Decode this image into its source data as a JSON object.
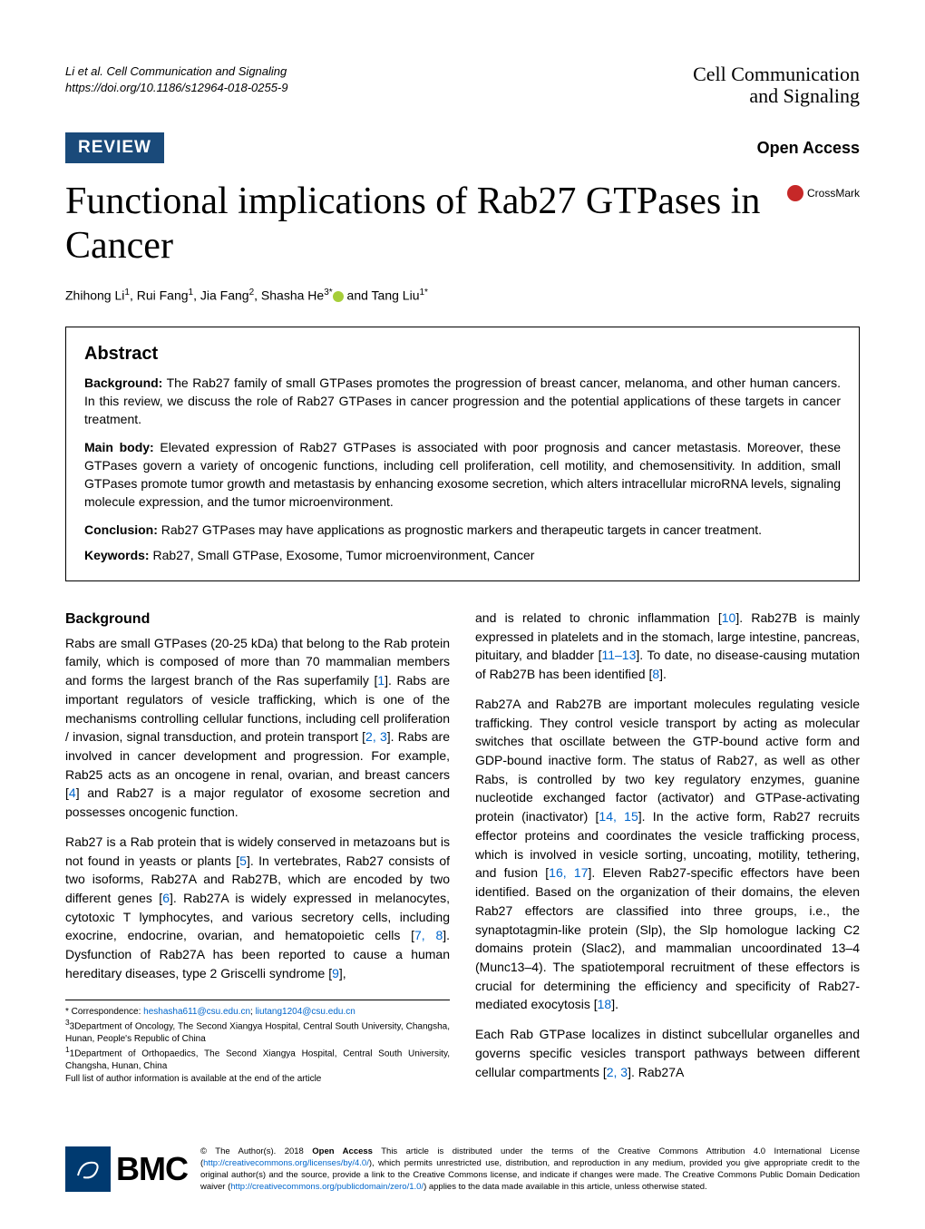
{
  "header": {
    "citation_line1": "Li et al. Cell Communication and Signaling",
    "citation_line2": "https://doi.org/10.1186/s12964-018-0255-9",
    "journal_top": "Cell Communication",
    "journal_bot": "and Signaling"
  },
  "band": {
    "review_tag": "REVIEW",
    "open_access": "Open Access"
  },
  "crossmark": {
    "text": "CrossMark"
  },
  "title": "Functional implications of Rab27 GTPases in Cancer",
  "authors": {
    "html": "Zhihong Li<sup>1</sup>, Rui Fang<sup>1</sup>, Jia Fang<sup>2</sup>, Shasha He<sup>3*</sup><span class='orcid' data-name='orcid-icon' data-interactable='false'></span> and Tang Liu<sup>1*</sup>"
  },
  "abstract": {
    "heading": "Abstract",
    "background_label": "Background:",
    "background_text": " The Rab27 family of small GTPases promotes the progression of breast cancer, melanoma, and other human cancers. In this review, we discuss the role of Rab27 GTPases in cancer progression and the potential applications of these targets in cancer treatment.",
    "mainbody_label": "Main body:",
    "mainbody_text": " Elevated expression of Rab27 GTPases is associated with poor prognosis and cancer metastasis. Moreover, these GTPases govern a variety of oncogenic functions, including cell proliferation, cell motility, and chemosensitivity. In addition, small GTPases promote tumor growth and metastasis by enhancing exosome secretion, which alters intracellular microRNA levels, signaling molecule expression, and the tumor microenvironment.",
    "conclusion_label": "Conclusion:",
    "conclusion_text": " Rab27 GTPases may have applications as prognostic markers and therapeutic targets in cancer treatment.",
    "keywords_label": "Keywords:",
    "keywords_text": " Rab27, Small GTPase, Exosome, Tumor microenvironment, Cancer"
  },
  "body": {
    "left": {
      "heading": "Background",
      "p1": "Rabs are small GTPases (20-25 kDa) that belong to the Rab protein family, which is composed of more than 70 mammalian members and forms the largest branch of the Ras superfamily [1]. Rabs are important regulators of vesicle trafficking, which is one of the mechanisms controlling cellular functions, including cell proliferation / invasion, signal transduction, and protein transport [2, 3]. Rabs are involved in cancer development and progression. For example, Rab25 acts as an oncogene in renal, ovarian, and breast cancers [4] and Rab27 is a major regulator of exosome secretion and possesses oncogenic function.",
      "p2": "Rab27 is a Rab protein that is widely conserved in metazoans but is not found in yeasts or plants [5]. In vertebrates, Rab27 consists of two isoforms, Rab27A and Rab27B, which are encoded by two different genes [6]. Rab27A is widely expressed in melanocytes, cytotoxic T lymphocytes, and various secretory cells, including exocrine, endocrine, ovarian, and hematopoietic cells [7, 8]. Dysfunction of Rab27A has been reported to cause a human hereditary diseases, type 2 Griscelli syndrome [9],"
    },
    "right": {
      "p1": "and is related to chronic inflammation [10]. Rab27B is mainly expressed in platelets and in the stomach, large intestine, pancreas, pituitary, and bladder [11–13]. To date, no disease-causing mutation of Rab27B has been identified [8].",
      "p2": "Rab27A and Rab27B are important molecules regulating vesicle trafficking. They control vesicle transport by acting as molecular switches that oscillate between the GTP-bound active form and GDP-bound inactive form. The status of Rab27, as well as other Rabs, is controlled by two key regulatory enzymes, guanine nucleotide exchanged factor (activator) and GTPase-activating protein (inactivator) [14, 15]. In the active form, Rab27 recruits effector proteins and coordinates the vesicle trafficking process, which is involved in vesicle sorting, uncoating, motility, tethering, and fusion [16, 17]. Eleven Rab27-specific effectors have been identified. Based on the organization of their domains, the eleven Rab27 effectors are classified into three groups, i.e., the synaptotagmin-like protein (Slp), the Slp homologue lacking C2 domains protein (Slac2), and mammalian uncoordinated 13–4 (Munc13–4). The spatiotemporal recruitment of these effectors is crucial for determining the efficiency and specificity of Rab27-mediated exocytosis [18].",
      "p3": "Each Rab GTPase localizes in distinct subcellular organelles and governs specific vesicles transport pathways between different cellular compartments [2, 3]. Rab27A"
    }
  },
  "footnotes": {
    "corr": "* Correspondence: ",
    "email1": "heshasha611@csu.edu.cn",
    "email_sep": "; ",
    "email2": "liutang1204@csu.edu.cn",
    "aff3": "3Department of Oncology, The Second Xiangya Hospital, Central South University, Changsha, Hunan, People's Republic of China",
    "aff1": "1Department of Orthopaedics, The Second Xiangya Hospital, Central South University, Changsha, Hunan, China",
    "full": "Full list of author information is available at the end of the article"
  },
  "footer": {
    "bmc": "BMC",
    "license_pre": "© The Author(s). 2018 ",
    "license_bold": "Open Access",
    "license_text1": " This article is distributed under the terms of the Creative Commons Attribution 4.0 International License (",
    "license_url1": "http://creativecommons.org/licenses/by/4.0/",
    "license_text2": "), which permits unrestricted use, distribution, and reproduction in any medium, provided you give appropriate credit to the original author(s) and the source, provide a link to the Creative Commons license, and indicate if changes were made. The Creative Commons Public Domain Dedication waiver (",
    "license_url2": "http://creativecommons.org/publicdomain/zero/1.0/",
    "license_text3": ") applies to the data made available in this article, unless otherwise stated."
  },
  "colors": {
    "nav_blue": "#2a5a8a",
    "tag_blue": "#1a4a7a",
    "link_blue": "#0066cc",
    "bmc_blue": "#003a70",
    "crossmark_red": "#c62828",
    "orcid_green": "#a6ce39"
  }
}
